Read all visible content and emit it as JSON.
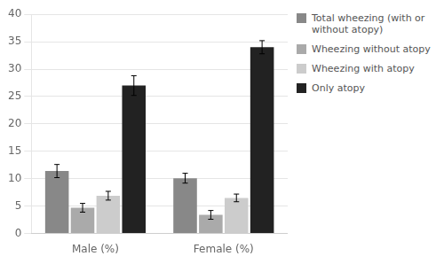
{
  "chart_data": {
    "type": "bar",
    "categories": [
      "Male (%)",
      "Female (%)"
    ],
    "series": [
      {
        "name": "Total wheezing (with or\nwithout atopy)",
        "color": "#888888",
        "values": [
          11.4,
          10.1
        ],
        "errors": [
          1.2,
          0.9
        ]
      },
      {
        "name": "Wheezing without atopy",
        "color": "#aaaaaa",
        "values": [
          4.7,
          3.4
        ],
        "errors": [
          0.8,
          0.8
        ]
      },
      {
        "name": "Wheezing with atopy",
        "color": "#cccccc",
        "values": [
          6.9,
          6.5
        ],
        "errors": [
          0.8,
          0.7
        ]
      },
      {
        "name": "Only atopy",
        "color": "#222222",
        "values": [
          27.0,
          34.0
        ],
        "errors": [
          1.8,
          1.2
        ]
      }
    ],
    "ylim": [
      0,
      40
    ],
    "yticks": [
      0,
      5,
      10,
      15,
      20,
      25,
      30,
      35,
      40
    ],
    "grid": "y",
    "legend": "right"
  }
}
